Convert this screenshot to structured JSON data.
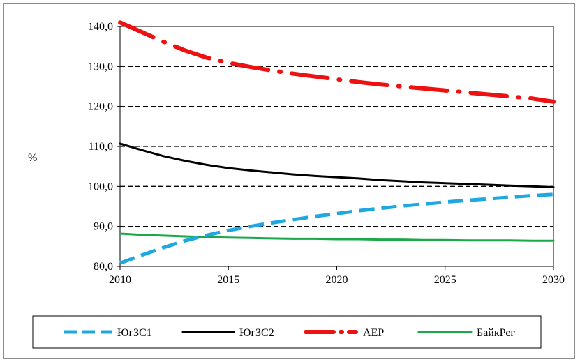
{
  "chart_data": {
    "type": "line",
    "ylabel": "%",
    "xlim": [
      2010,
      2030
    ],
    "ylim": [
      80,
      140
    ],
    "x_ticks": [
      "2010",
      "2015",
      "2020",
      "2025",
      "2030"
    ],
    "y_ticks": [
      "80,0",
      "90,0",
      "100,0",
      "110,0",
      "120,0",
      "130,0",
      "140,0"
    ],
    "grid": "horizontal dashed",
    "legend_position": "bottom",
    "x": [
      2010,
      2011,
      2012,
      2013,
      2014,
      2015,
      2016,
      2017,
      2018,
      2019,
      2020,
      2021,
      2022,
      2023,
      2024,
      2025,
      2026,
      2027,
      2028,
      2029,
      2030
    ],
    "series": [
      {
        "name": "ЮгЗС1",
        "color": "#1fa8e0",
        "style": "dashed",
        "values": [
          80.8,
          82.8,
          84.7,
          86.4,
          87.8,
          89.0,
          90.0,
          90.9,
          91.7,
          92.5,
          93.2,
          93.9,
          94.5,
          95.1,
          95.6,
          96.1,
          96.5,
          96.9,
          97.3,
          97.7,
          98.0
        ]
      },
      {
        "name": "ЮгЗС2",
        "color": "#000000",
        "style": "solid",
        "values": [
          110.7,
          109.1,
          107.6,
          106.4,
          105.4,
          104.6,
          104.0,
          103.5,
          103.0,
          102.6,
          102.3,
          102.0,
          101.6,
          101.3,
          101.0,
          100.8,
          100.6,
          100.4,
          100.2,
          100.0,
          99.8
        ]
      },
      {
        "name": "АЕР",
        "color": "#ee1111",
        "style": "dash-dot",
        "values": [
          141.0,
          138.6,
          136.2,
          134.0,
          132.2,
          130.9,
          129.9,
          129.0,
          128.2,
          127.5,
          126.8,
          126.1,
          125.5,
          125.0,
          124.5,
          124.0,
          123.5,
          123.0,
          122.5,
          122.0,
          121.2
        ]
      },
      {
        "name": "БайкРег",
        "color": "#1aa84a",
        "style": "solid",
        "values": [
          88.2,
          87.9,
          87.7,
          87.5,
          87.3,
          87.2,
          87.1,
          87.0,
          86.9,
          86.9,
          86.8,
          86.8,
          86.7,
          86.7,
          86.6,
          86.6,
          86.5,
          86.5,
          86.5,
          86.4,
          86.4
        ]
      }
    ]
  }
}
